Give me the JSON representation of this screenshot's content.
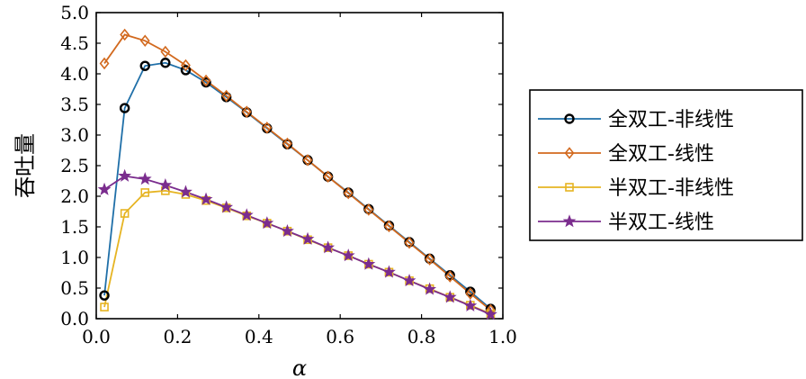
{
  "chart_data": {
    "type": "line",
    "xlabel": "α",
    "ylabel": "吞吐量",
    "xlim": [
      0.0,
      1.0
    ],
    "ylim": [
      0.0,
      5.0
    ],
    "xticks": [
      "0.0",
      "0.2",
      "0.4",
      "0.6",
      "0.8",
      "1.0"
    ],
    "yticks": [
      "0.0",
      "0.5",
      "1.0",
      "1.5",
      "2.0",
      "2.5",
      "3.0",
      "3.5",
      "4.0",
      "4.5",
      "5.0"
    ],
    "grid": false,
    "legend_position": "right",
    "x": [
      0.02,
      0.07,
      0.12,
      0.17,
      0.22,
      0.27,
      0.32,
      0.37,
      0.42,
      0.47,
      0.52,
      0.57,
      0.62,
      0.67,
      0.72,
      0.77,
      0.82,
      0.87,
      0.92,
      0.97
    ],
    "series": [
      {
        "name": "全双工-非线性",
        "color": "#1f6fa8",
        "marker": "circle",
        "values": [
          0.38,
          3.44,
          4.13,
          4.18,
          4.06,
          3.86,
          3.62,
          3.37,
          3.11,
          2.85,
          2.59,
          2.32,
          2.06,
          1.79,
          1.52,
          1.25,
          0.98,
          0.71,
          0.44,
          0.16
        ]
      },
      {
        "name": "全双工-线性",
        "color": "#d2691e",
        "marker": "diamond",
        "values": [
          4.17,
          4.64,
          4.54,
          4.36,
          4.14,
          3.89,
          3.64,
          3.38,
          3.12,
          2.86,
          2.59,
          2.32,
          2.05,
          1.78,
          1.51,
          1.24,
          0.97,
          0.69,
          0.41,
          0.14
        ]
      },
      {
        "name": "半双工-非线性",
        "color": "#e6b422",
        "marker": "square",
        "values": [
          0.19,
          1.72,
          2.06,
          2.09,
          2.03,
          1.93,
          1.81,
          1.68,
          1.56,
          1.43,
          1.29,
          1.16,
          1.03,
          0.89,
          0.76,
          0.62,
          0.49,
          0.35,
          0.22,
          0.08
        ]
      },
      {
        "name": "半双工-线性",
        "color": "#7b2d8e",
        "marker": "star",
        "values": [
          2.11,
          2.33,
          2.28,
          2.18,
          2.07,
          1.95,
          1.82,
          1.69,
          1.56,
          1.43,
          1.3,
          1.16,
          1.03,
          0.89,
          0.76,
          0.62,
          0.48,
          0.35,
          0.21,
          0.07
        ]
      }
    ]
  }
}
